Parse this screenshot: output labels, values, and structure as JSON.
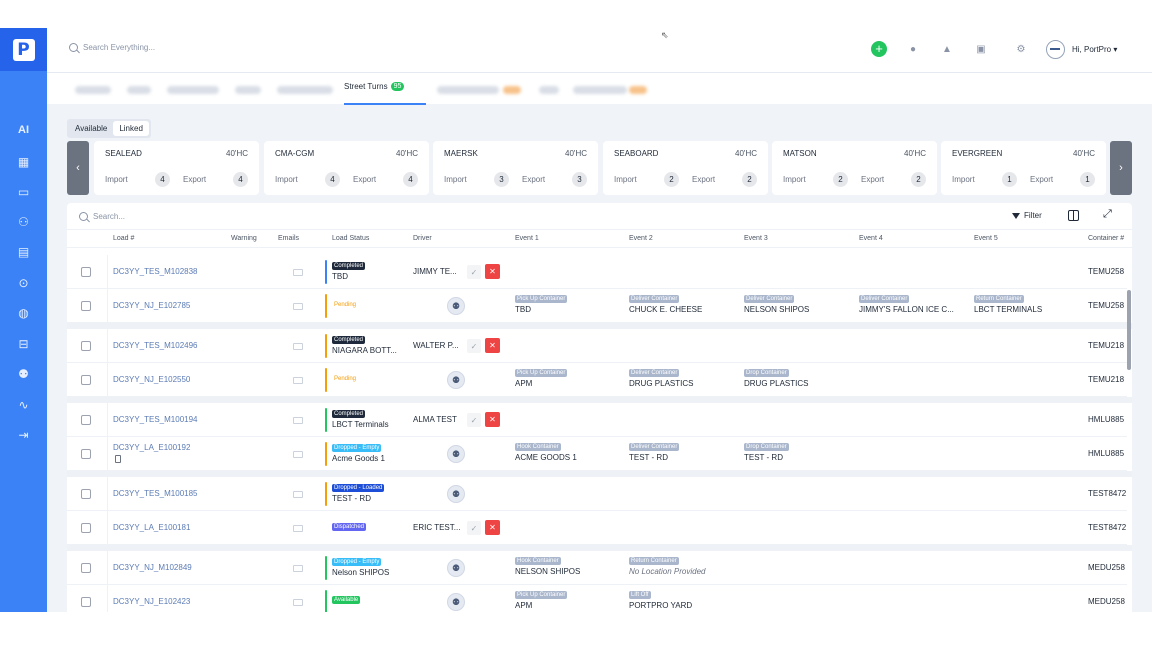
{
  "search_top": {
    "placeholder": "Search Everything..."
  },
  "user": {
    "greeting": "Hi, PortPro ▾"
  },
  "sidebar": {
    "ai_label": "AI"
  },
  "tabs": {
    "active_label": "Street Turns",
    "active_count": "95"
  },
  "toggle": {
    "available": "Available",
    "linked": "Linked"
  },
  "carriers": [
    {
      "name": "SEALEAD",
      "size": "40'HC",
      "import_label": "Import",
      "import": "4",
      "export_label": "Export",
      "export": "4"
    },
    {
      "name": "CMA-CGM",
      "size": "40'HC",
      "import_label": "Import",
      "import": "4",
      "export_label": "Export",
      "export": "4"
    },
    {
      "name": "MAERSK",
      "size": "40'HC",
      "import_label": "Import",
      "import": "3",
      "export_label": "Export",
      "export": "3"
    },
    {
      "name": "SEABOARD",
      "size": "40'HC",
      "import_label": "Import",
      "import": "2",
      "export_label": "Export",
      "export": "2"
    },
    {
      "name": "MATSON",
      "size": "40'HC",
      "import_label": "Import",
      "import": "2",
      "export_label": "Export",
      "export": "2"
    },
    {
      "name": "EVERGREEN",
      "size": "40'HC",
      "import_label": "Import",
      "import": "1",
      "export_label": "Export",
      "export": "1"
    }
  ],
  "grid": {
    "search_placeholder": "Search...",
    "filter_label": "Filter",
    "headers": {
      "load": "Load #",
      "warning": "Warning",
      "emails": "Emails",
      "status": "Load Status",
      "driver": "Driver",
      "event1": "Event 1",
      "event2": "Event 2",
      "event3": "Event 3",
      "event4": "Event 4",
      "event5": "Event 5",
      "container": "Container #"
    },
    "rows": [
      {
        "load": "DC3YY_TES_M102838",
        "status": "Completed",
        "status_loc": "TBD",
        "driver": "JIMMY TE...",
        "container": "TEMU258"
      },
      {
        "load": "DC3YY_NJ_E102785",
        "status": "Pending",
        "e1b": "Pick Up Container",
        "e1": "TBD",
        "e2b": "Deliver Container",
        "e2": "CHUCK E. CHEESE",
        "e3b": "Deliver Container",
        "e3": "NELSON SHIPOS",
        "e4b": "Deliver Container",
        "e4": "JIMMY'S FALLON ICE C...",
        "e5b": "Return Container",
        "e5": "LBCT TERMINALS",
        "container": "TEMU258"
      },
      {
        "load": "DC3YY_TES_M102496",
        "status": "Completed",
        "status_loc": "NIAGARA BOTT...",
        "driver": "WALTER P...",
        "container": "TEMU218"
      },
      {
        "load": "DC3YY_NJ_E102550",
        "status": "Pending",
        "e1b": "Pick Up Container",
        "e1": "APM",
        "e2b": "Deliver Container",
        "e2": "DRUG PLASTICS",
        "e3b": "Drop Container",
        "e3": "DRUG PLASTICS",
        "container": "TEMU218"
      },
      {
        "load": "DC3YY_TES_M100194",
        "status": "Completed",
        "status_loc": "LBCT Terminals",
        "driver": "ALMA TEST",
        "container": "HMLU885"
      },
      {
        "load": "DC3YY_LA_E100192",
        "status": "Dropped - Empty",
        "status_loc": "Acme Goods 1",
        "e1b": "Hook Container",
        "e1": "ACME GOODS 1",
        "e2b": "Deliver Container",
        "e2": "TEST - RD",
        "e3b": "Drop Container",
        "e3": "TEST - RD",
        "container": "HMLU885"
      },
      {
        "load": "DC3YY_TES_M100185",
        "status": "Dropped - Loaded",
        "status_loc": "TEST - RD",
        "container": "TEST8472"
      },
      {
        "load": "DC3YY_LA_E100181",
        "status": "Dispatched",
        "driver": "ERIC TEST...",
        "container": "TEST8472"
      },
      {
        "load": "DC3YY_NJ_M102849",
        "status": "Dropped - Empty",
        "status_loc": "Nelson SHIPOS",
        "e1b": "Hook Container",
        "e1": "NELSON SHIPOS",
        "e2b": "Return Container",
        "e2": "No Location Provided",
        "container": "MEDU258"
      },
      {
        "load": "DC3YY_NJ_E102423",
        "status": "Available",
        "e1b": "Pick Up Container",
        "e1": "APM",
        "e2b": "Lift Off",
        "e2": "PORTPRO YARD",
        "container": "MEDU258"
      }
    ]
  },
  "colors": {
    "sidebar": "#3b82f6",
    "completed": "#1e2a3b",
    "pending": "#f59e0b",
    "dropped_empty": "#38bdf8",
    "dropped_loaded": "#1d4ed8",
    "dispatched": "#6366f1",
    "available": "#22c55e",
    "reject": "#ef4444"
  },
  "icons": [
    "plus-icon",
    "chat-icon",
    "bell-icon",
    "inbox-icon",
    "gear-icon",
    "map-icon",
    "monitor-icon",
    "users-icon",
    "store-icon",
    "dollar-icon",
    "globe-icon",
    "truck-icon",
    "user-settings-icon",
    "activity-icon",
    "logout-icon",
    "search-icon",
    "filter-icon",
    "columns-icon",
    "expand-icon",
    "assign-driver-icon"
  ]
}
